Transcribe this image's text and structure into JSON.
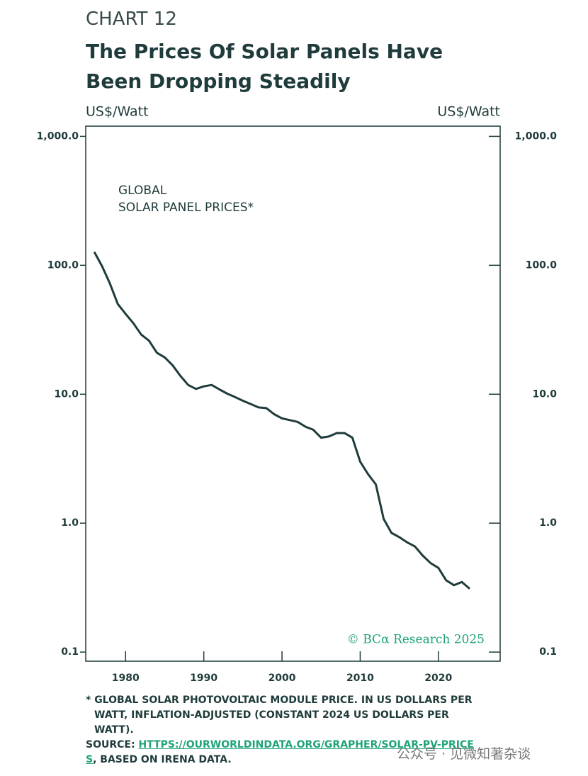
{
  "header": {
    "kicker": "CHART 12",
    "title": "The Prices Of Solar Panels Have Been Dropping Steadily"
  },
  "chart_data": {
    "type": "line",
    "y_label": "US$/Watt",
    "y2_label": "US$/Watt",
    "annotation": [
      "GLOBAL",
      "SOLAR PANEL PRICES*"
    ],
    "credit": "© BCα Research 2025",
    "log_scale": true,
    "color": "#1f3b3b",
    "x": [
      1976,
      1977,
      1978,
      1979,
      1980,
      1981,
      1982,
      1983,
      1984,
      1985,
      1986,
      1987,
      1988,
      1989,
      1990,
      1991,
      1992,
      1993,
      1994,
      1995,
      1996,
      1997,
      1998,
      1999,
      2000,
      2001,
      2002,
      2003,
      2004,
      2005,
      2006,
      2007,
      2008,
      2009,
      2010,
      2011,
      2012,
      2013,
      2014,
      2015,
      2016,
      2017,
      2018,
      2019,
      2020,
      2021,
      2022,
      2023,
      2024
    ],
    "series": [
      {
        "color": "#1f3b3b",
        "values": [
          127,
          98,
          72,
          50,
          42,
          35.5,
          29,
          26,
          21,
          19.3,
          16.8,
          13.9,
          11.8,
          11.0,
          11.5,
          11.8,
          10.9,
          10.1,
          9.5,
          8.9,
          8.4,
          7.9,
          7.8,
          7.0,
          6.5,
          6.3,
          6.1,
          5.6,
          5.3,
          4.6,
          4.7,
          5.0,
          5.0,
          4.6,
          3.0,
          2.4,
          2.0,
          1.08,
          0.84,
          0.78,
          0.71,
          0.66,
          0.56,
          0.49,
          0.45,
          0.36,
          0.33,
          0.35,
          0.31
        ]
      }
    ],
    "xlim": [
      1974.9,
      2027.9
    ],
    "xticks": [
      1980,
      1990,
      2000,
      2010,
      2020
    ],
    "ylim": [
      0.085,
      1200
    ],
    "yticks": [
      0.1,
      {
        "value": 1,
        "label": "1.0"
      },
      {
        "value": 10,
        "label": "10.0"
      },
      {
        "value": 100,
        "label": "100.0"
      },
      {
        "value": 1000,
        "label": "1,000.0"
      }
    ],
    "y2lim": [
      0.085,
      1200
    ],
    "y2ticks": [
      0.1,
      {
        "value": 1,
        "label": "1.0"
      },
      {
        "value": 10,
        "label": "10.0"
      },
      {
        "value": 100,
        "label": "100.0"
      },
      {
        "value": 1000,
        "label": "1,000.0"
      }
    ]
  },
  "footer": {
    "note": "* GLOBAL SOLAR PHOTOVOLTAIC MODULE PRICE. IN US DOLLARS PER WATT, INFLATION-ADJUSTED (CONSTANT 2024 US DOLLARS PER WATT).",
    "source_label": "SOURCE:",
    "source_link": "HTTPS://OURWORLDINDATA.ORG/GRAPHER/SOLAR-PV-PRICES",
    "source_rest": ", BASED ON IRENA DATA."
  },
  "watermark": "公众号 · 见微知著杂谈"
}
